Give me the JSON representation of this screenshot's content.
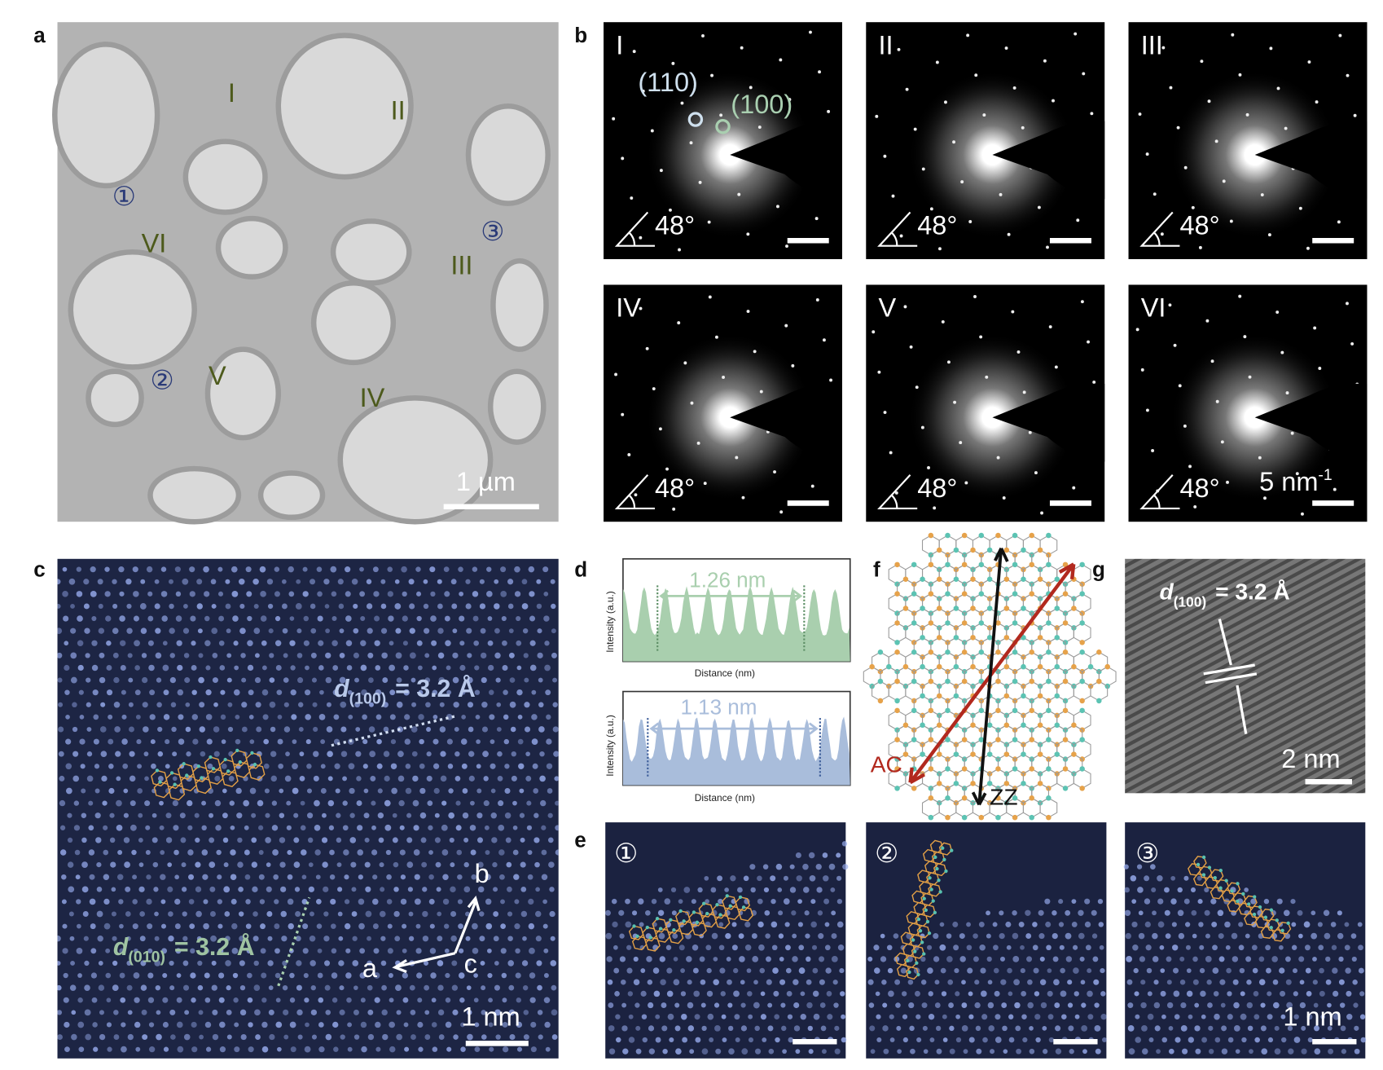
{
  "panels": {
    "a": {
      "label": "a",
      "regions": [
        "I",
        "II",
        "III",
        "IV",
        "V",
        "VI"
      ],
      "sites": [
        "①",
        "②",
        "③"
      ],
      "scale_bar": "1 µm"
    },
    "b": {
      "label": "b",
      "patterns": [
        {
          "name": "I",
          "angle": "48°"
        },
        {
          "name": "II",
          "angle": "48°"
        },
        {
          "name": "III",
          "angle": "48°"
        },
        {
          "name": "IV",
          "angle": "48°"
        },
        {
          "name": "V",
          "angle": "48°"
        },
        {
          "name": "VI",
          "angle": "48°"
        }
      ],
      "spot_110": "(110)",
      "spot_100": "(100)",
      "scale_bar": "5 nm",
      "scale_bar_exponent": "-1"
    },
    "c": {
      "label": "c",
      "d100": {
        "symbol": "d",
        "index": "(100)",
        "value": "= 3.2 Å"
      },
      "d010": {
        "symbol": "d",
        "index": "(010)",
        "value": "= 3.2 Å"
      },
      "axes": [
        "a",
        "b",
        "c"
      ],
      "scale_bar": "1 nm"
    },
    "d": {
      "label": "d",
      "profiles": [
        {
          "y_label": "Intensity (a.u.)",
          "x_label": "Distance (nm)",
          "distance": "1.26 nm"
        },
        {
          "y_label": "Intensity (a.u.)",
          "x_label": "Distance (nm)",
          "distance": "1.13 nm"
        }
      ]
    },
    "e": {
      "label": "e",
      "sites": [
        "①",
        "②",
        "③"
      ],
      "scale_bar": "1 nm"
    },
    "f": {
      "label": "f",
      "directions": [
        "AC",
        "ZZ"
      ]
    },
    "g": {
      "label": "g",
      "d100": {
        "symbol": "d",
        "index": "(100)",
        "value": "= 3.2 Å"
      },
      "scale_bar": "2 nm"
    }
  }
}
